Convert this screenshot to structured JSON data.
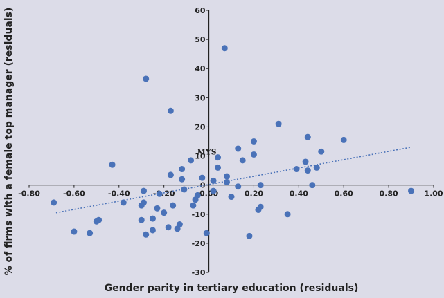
{
  "chart_data": {
    "type": "scatter",
    "title": "",
    "xlabel": "Gender parity in tertiary education (residuals)",
    "ylabel": "% of firms with a female top manager (residuals)",
    "xlim": [
      -0.8,
      1.0
    ],
    "ylim": [
      -30,
      60
    ],
    "x_ticks": [
      "-0.80",
      "-0.60",
      "-0.40",
      "-0.20",
      "0.00",
      "0.20",
      "0.40",
      "0.60",
      "0.80",
      "1.00"
    ],
    "y_ticks": [
      "-30",
      "-20",
      "-10",
      "0",
      "10",
      "20",
      "30",
      "40",
      "50",
      "60"
    ],
    "grid": false,
    "legend": "none",
    "colors": {
      "points": "#4a72b8",
      "trendline": "#4a72b8",
      "axes": "#222222",
      "background": "#dcdce8"
    },
    "trendline": {
      "style": "dotted",
      "x": [
        -0.68,
        0.9
      ],
      "y": [
        -9.5,
        13.0
      ]
    },
    "annotations": [
      {
        "text": "MYS",
        "x": 0.04,
        "y": 9.5
      }
    ],
    "points": [
      [
        0.07,
        47.0
      ],
      [
        -0.28,
        36.5
      ],
      [
        -0.17,
        25.5
      ],
      [
        0.31,
        21.0
      ],
      [
        0.44,
        16.5
      ],
      [
        0.6,
        15.5
      ],
      [
        0.2,
        15.0
      ],
      [
        0.13,
        12.5
      ],
      [
        0.5,
        11.5
      ],
      [
        0.2,
        10.5
      ],
      [
        0.04,
        9.5
      ],
      [
        0.15,
        8.5
      ],
      [
        -0.08,
        8.5
      ],
      [
        0.43,
        8.0
      ],
      [
        -0.43,
        7.0
      ],
      [
        0.04,
        6.0
      ],
      [
        0.48,
        6.0
      ],
      [
        -0.12,
        5.5
      ],
      [
        0.39,
        5.5
      ],
      [
        0.44,
        5.0
      ],
      [
        -0.17,
        3.5
      ],
      [
        0.08,
        3.0
      ],
      [
        -0.03,
        2.5
      ],
      [
        -0.12,
        2.0
      ],
      [
        0.02,
        1.5
      ],
      [
        0.08,
        1.0
      ],
      [
        0.23,
        0.0
      ],
      [
        0.46,
        0.0
      ],
      [
        0.13,
        -0.5
      ],
      [
        -0.11,
        -1.5
      ],
      [
        -0.29,
        -2.0
      ],
      [
        0.02,
        -2.0
      ],
      [
        0.9,
        -2.0
      ],
      [
        -0.22,
        -3.0
      ],
      [
        -0.05,
        -3.5
      ],
      [
        0.1,
        -4.0
      ],
      [
        -0.06,
        -5.0
      ],
      [
        -0.69,
        -6.0
      ],
      [
        -0.38,
        -6.0
      ],
      [
        -0.29,
        -6.0
      ],
      [
        -0.3,
        -7.0
      ],
      [
        -0.16,
        -7.0
      ],
      [
        -0.07,
        -7.0
      ],
      [
        0.23,
        -7.5
      ],
      [
        0.22,
        -8.5
      ],
      [
        -0.23,
        -8.0
      ],
      [
        -0.2,
        -9.5
      ],
      [
        0.35,
        -10.0
      ],
      [
        -0.25,
        -11.5
      ],
      [
        -0.3,
        -12.0
      ],
      [
        -0.49,
        -12.0
      ],
      [
        -0.5,
        -12.5
      ],
      [
        -0.13,
        -13.5
      ],
      [
        -0.18,
        -14.5
      ],
      [
        -0.14,
        -15.0
      ],
      [
        -0.25,
        -15.5
      ],
      [
        -0.6,
        -16.0
      ],
      [
        -0.53,
        -16.5
      ],
      [
        -0.28,
        -17.0
      ],
      [
        -0.01,
        -16.5
      ],
      [
        0.18,
        -17.5
      ]
    ]
  }
}
